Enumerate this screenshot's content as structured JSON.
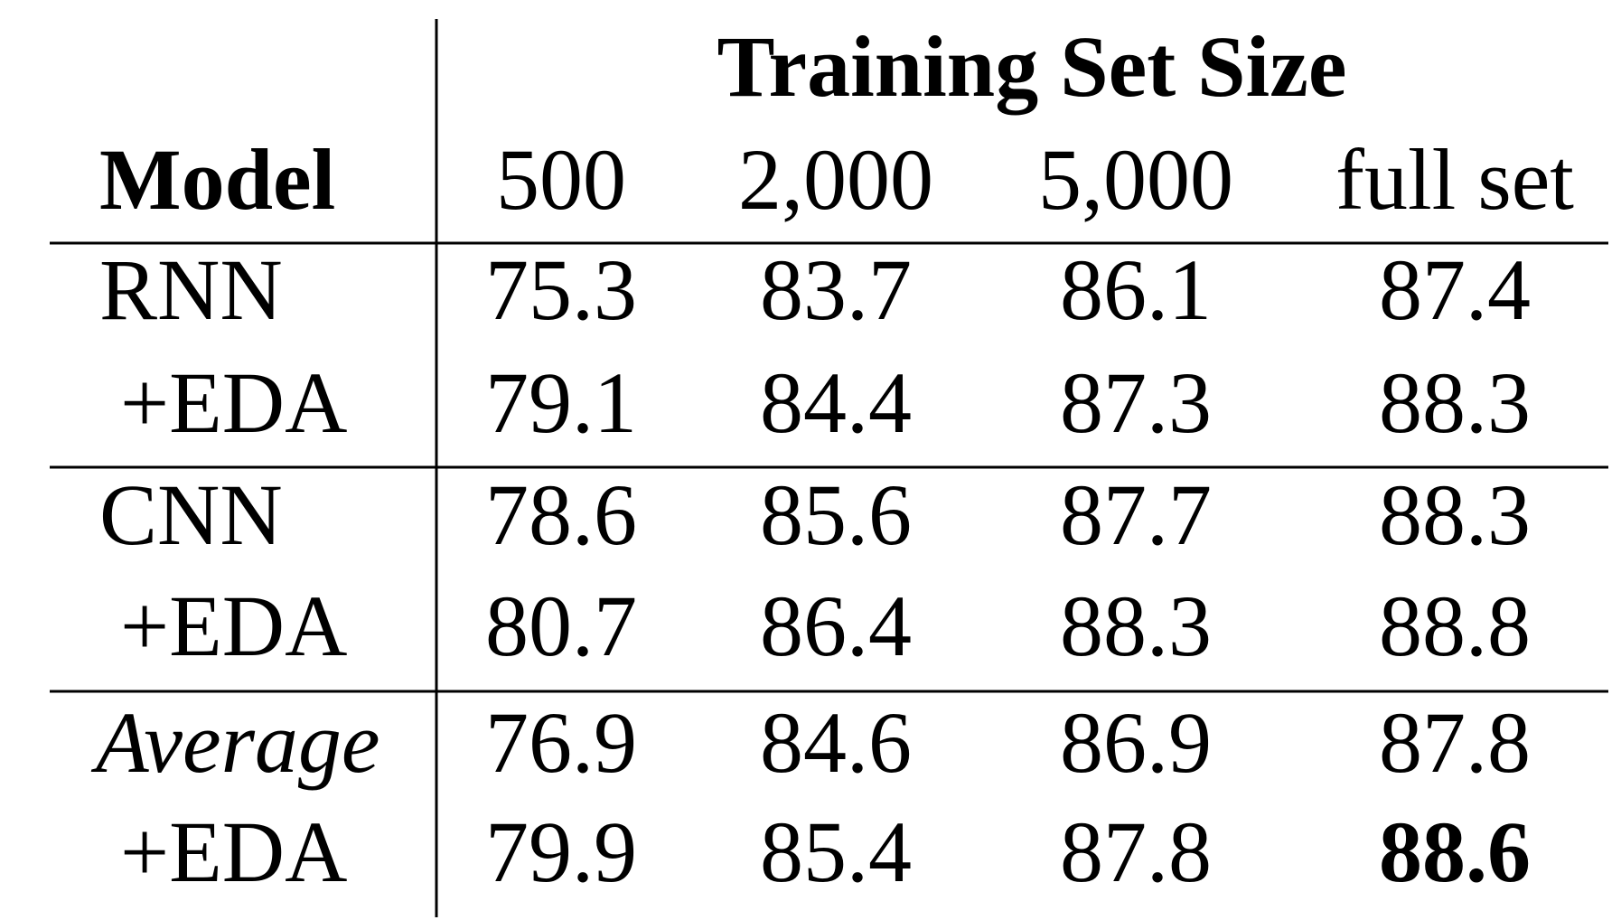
{
  "table": {
    "column_group": "Training Set Size",
    "header": [
      "Model",
      "500",
      "2,000",
      "5,000",
      "full set"
    ],
    "rows": [
      [
        "RNN",
        "75.3",
        "83.7",
        "86.1",
        "87.4"
      ],
      [
        "+EDA",
        "79.1",
        "84.4",
        "87.3",
        "88.3"
      ],
      [
        "CNN",
        "78.6",
        "85.6",
        "87.7",
        "88.3"
      ],
      [
        "+EDA",
        "80.7",
        "86.4",
        "88.3",
        "88.8"
      ],
      [
        "Average",
        "76.9",
        "84.6",
        "86.9",
        "87.8"
      ],
      [
        "+EDA",
        "79.9",
        "85.4",
        "87.8",
        "88.6"
      ]
    ]
  }
}
